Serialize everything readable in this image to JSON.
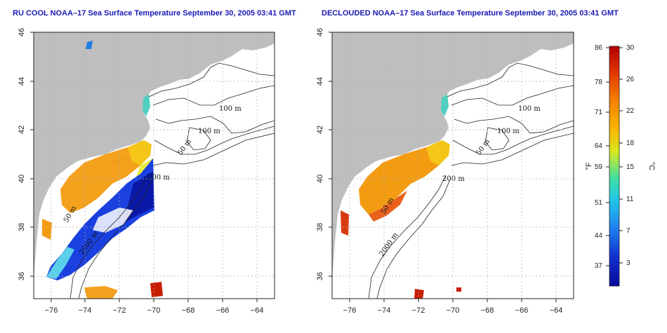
{
  "left_panel": {
    "title": "RU COOL NOAA–17 Sea Surface Temperature September 30, 2005 03:41 GMT",
    "x_ticks": [
      "−76",
      "−74",
      "−72",
      "−70",
      "−68",
      "−66",
      "−64"
    ],
    "y_ticks": [
      "46",
      "44",
      "42",
      "40",
      "38",
      "36"
    ],
    "contour_labels": [
      "100 m",
      "100 m",
      "50 m",
      "200 m",
      "50 m",
      "2000 m"
    ]
  },
  "right_panel": {
    "title": "DECLOUDED NOAA–17 Sea Surface Temperature September 30, 2005 03:41 GMT",
    "x_ticks": [
      "−76",
      "−74",
      "−72",
      "−70",
      "−68",
      "−66",
      "−64"
    ],
    "y_ticks": [
      "46",
      "44",
      "42",
      "40",
      "38",
      "36"
    ],
    "contour_labels": [
      "100 m",
      "100 m",
      "50 m",
      "200 m",
      "50 m",
      "2000 m"
    ]
  },
  "colorbar": {
    "fahrenheit_ticks": [
      "86",
      "78",
      "71",
      "64",
      "59",
      "51",
      "44",
      "37"
    ],
    "celsius_ticks": [
      "30",
      "26",
      "22",
      "18",
      "15",
      "11",
      "7",
      "3"
    ],
    "fahrenheit_label": "°F",
    "celsius_label": "°C",
    "colors": [
      "#b30000",
      "#e03000",
      "#f57c00",
      "#f8b800",
      "#d8e820",
      "#40e0a0",
      "#20c8e8",
      "#2080f0",
      "#1030d0",
      "#0a0a9a"
    ]
  },
  "map_colors": {
    "land": "#bebebe",
    "ocean": "#ffffff",
    "grid": "#b0b0b0",
    "contour": "#222222"
  }
}
